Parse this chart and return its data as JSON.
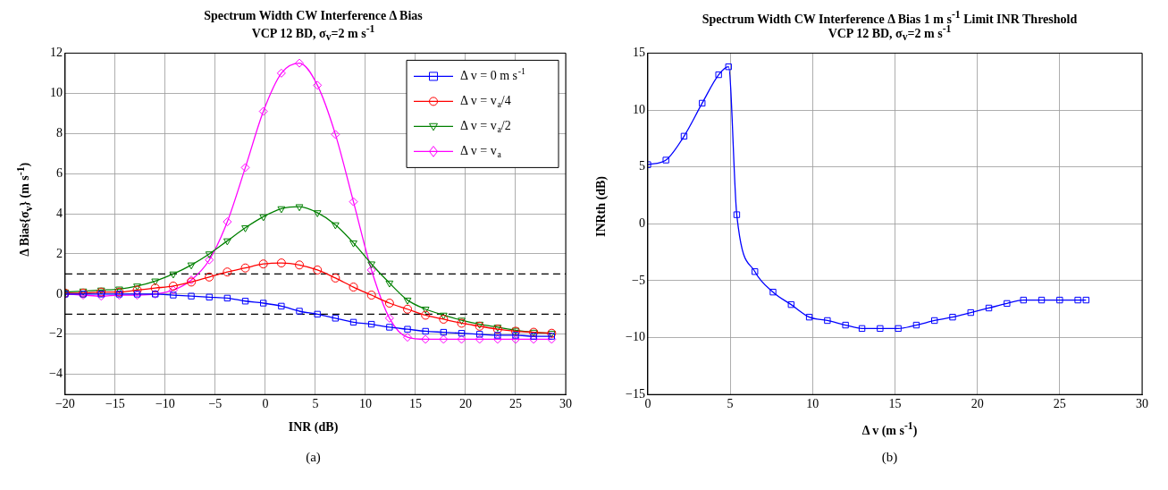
{
  "chart_data": [
    {
      "type": "line",
      "title": "Spectrum Width CW Interference Δ Bias",
      "subtitle": "VCP 12 BD, σ$_{v}$=2 m s$^{-1}$",
      "xlabel": "INR (dB)",
      "ylabel": "Δ Bias{σ$_{v}$} (m s$^{-1}$)",
      "annotations": [
        "(a)"
      ],
      "x": [
        -20,
        -18.2,
        -16.4,
        -14.6,
        -12.8,
        -11,
        -9.2,
        -7.4,
        -5.6,
        -3.8,
        -2,
        -0.2,
        1.6,
        3.4,
        5.2,
        7,
        8.8,
        10.6,
        12.4,
        14.2,
        16,
        17.8,
        19.6,
        21.4,
        23.2,
        25,
        26.8,
        28.6
      ],
      "xlim": [
        -20,
        30
      ],
      "xticks": [
        -20,
        -15,
        -10,
        -5,
        0,
        5,
        10,
        15,
        20,
        25,
        30
      ],
      "ylim": [
        -5,
        12
      ],
      "yticks": [
        -4,
        -2,
        0,
        2,
        4,
        6,
        8,
        10,
        12
      ],
      "grid": true,
      "legend": "top right",
      "ref_lines": [
        {
          "axis": "y",
          "value": 1,
          "color": "#000000",
          "line_style": "dashed"
        },
        {
          "axis": "y",
          "value": -1,
          "color": "#000000",
          "line_style": "dashed"
        }
      ],
      "series": [
        {
          "name": "Δ v = 0 m s$^{-1}$",
          "color": "#0000ff",
          "marker": "square",
          "values": [
            0,
            0,
            0,
            0,
            0,
            0,
            -0.05,
            -0.1,
            -0.15,
            -0.2,
            -0.35,
            -0.45,
            -0.6,
            -0.85,
            -1.0,
            -1.2,
            -1.4,
            -1.5,
            -1.65,
            -1.75,
            -1.85,
            -1.9,
            -1.95,
            -2.0,
            -2.05,
            -2.05,
            -2.1,
            -2.1
          ]
        },
        {
          "name": "Δ v = v$_{a}$/4",
          "color": "#ff0000",
          "marker": "circle",
          "values": [
            0.05,
            0.05,
            0.1,
            0.1,
            0.2,
            0.3,
            0.4,
            0.6,
            0.85,
            1.1,
            1.3,
            1.5,
            1.55,
            1.45,
            1.2,
            0.8,
            0.35,
            -0.05,
            -0.45,
            -0.75,
            -1.05,
            -1.25,
            -1.45,
            -1.6,
            -1.75,
            -1.85,
            -1.9,
            -1.95
          ]
        },
        {
          "name": "Δ v = v$_{a}$/2",
          "color": "#008000",
          "marker": "triangle",
          "values": [
            0.1,
            0.15,
            0.2,
            0.25,
            0.4,
            0.65,
            1.0,
            1.45,
            2.0,
            2.65,
            3.3,
            3.85,
            4.25,
            4.35,
            4.05,
            3.45,
            2.55,
            1.5,
            0.55,
            -0.3,
            -0.75,
            -1.05,
            -1.3,
            -1.5,
            -1.65,
            -1.8,
            -1.9,
            -1.95
          ]
        },
        {
          "name": "Δ v = v$_{a}$",
          "color": "#ff00ff",
          "marker": "diamond",
          "values": [
            0,
            -0.05,
            -0.1,
            -0.05,
            -0.05,
            0,
            0.2,
            0.7,
            1.7,
            3.6,
            6.3,
            9.1,
            11.0,
            11.5,
            10.4,
            7.95,
            4.6,
            1.2,
            -1.2,
            -2.15,
            -2.25,
            -2.25,
            -2.25,
            -2.25,
            -2.25,
            -2.25,
            -2.25,
            -2.25
          ]
        }
      ]
    },
    {
      "type": "line",
      "title": "Spectrum Width CW Interference Δ Bias 1 m s$^{-1}$ Limit INR Threshold",
      "subtitle": "VCP 12 BD, σ$_{v}$=2 m s$^{-1}$",
      "xlabel": "Δ  v (m s$^{-1}$)",
      "ylabel": "INRth (dB)",
      "annotations": [
        "(b)"
      ],
      "x": [
        0,
        1.1,
        2.2,
        3.3,
        4.3,
        4.9,
        5.4,
        6.5,
        7.6,
        8.7,
        9.8,
        10.9,
        12,
        13,
        14.1,
        15.2,
        16.3,
        17.4,
        18.5,
        19.6,
        20.7,
        21.8,
        22.8,
        23.9,
        25,
        26.1,
        26.6
      ],
      "xlim": [
        0,
        30
      ],
      "xticks": [
        0,
        5,
        10,
        15,
        20,
        25,
        30
      ],
      "ylim": [
        -15,
        15
      ],
      "yticks": [
        -15,
        -10,
        -5,
        0,
        5,
        10,
        15
      ],
      "grid": true,
      "series": [
        {
          "color": "#0000ff",
          "marker": "square",
          "values": [
            5.2,
            5.6,
            7.7,
            10.6,
            13.1,
            13.8,
            0.8,
            -4.2,
            -6.0,
            -7.1,
            -8.2,
            -8.5,
            -8.9,
            -9.2,
            -9.2,
            -9.2,
            -8.9,
            -8.5,
            -8.2,
            -7.8,
            -7.4,
            -7.0,
            -6.7,
            -6.7,
            -6.7,
            -6.7,
            -6.7
          ]
        }
      ]
    }
  ]
}
